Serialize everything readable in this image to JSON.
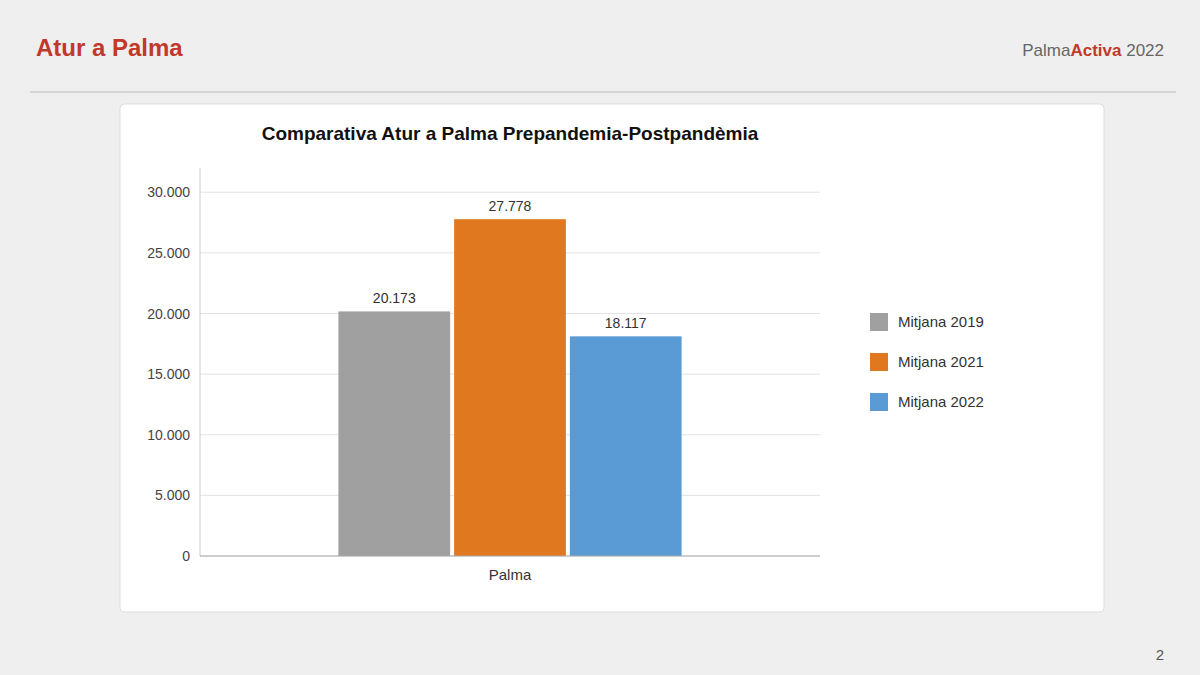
{
  "chart_data": {
    "type": "bar",
    "title": "Comparativa Atur a Palma Prepandemia-Postpandèmia",
    "annotations": [
      "Atur a Palma",
      "Palma",
      "Activa",
      " 2022",
      "2"
    ],
    "categories": [
      "Palma"
    ],
    "series": [
      {
        "name": "Mitjana 2019",
        "color": "#A0A0A0",
        "values": [
          20173
        ],
        "value_labels": [
          "20.173"
        ]
      },
      {
        "name": "Mitjana 2021",
        "color": "#E07820",
        "values": [
          27778
        ],
        "value_labels": [
          "27.778"
        ]
      },
      {
        "name": "Mitjana 2022",
        "color": "#5B9BD5",
        "values": [
          18117
        ],
        "value_labels": [
          "18.117"
        ]
      }
    ],
    "ylim": [
      0,
      32000
    ],
    "yticks": [
      0,
      {
        "value": 5000,
        "label": "5.000"
      },
      {
        "value": 10000,
        "label": "10.000"
      },
      {
        "value": 15000,
        "label": "15.000"
      },
      {
        "value": 20000,
        "label": "20.000"
      },
      {
        "value": 25000,
        "label": "25.000"
      },
      {
        "value": 30000,
        "label": "30.000"
      }
    ],
    "grid": true,
    "legend": "right",
    "data_labels": true
  }
}
